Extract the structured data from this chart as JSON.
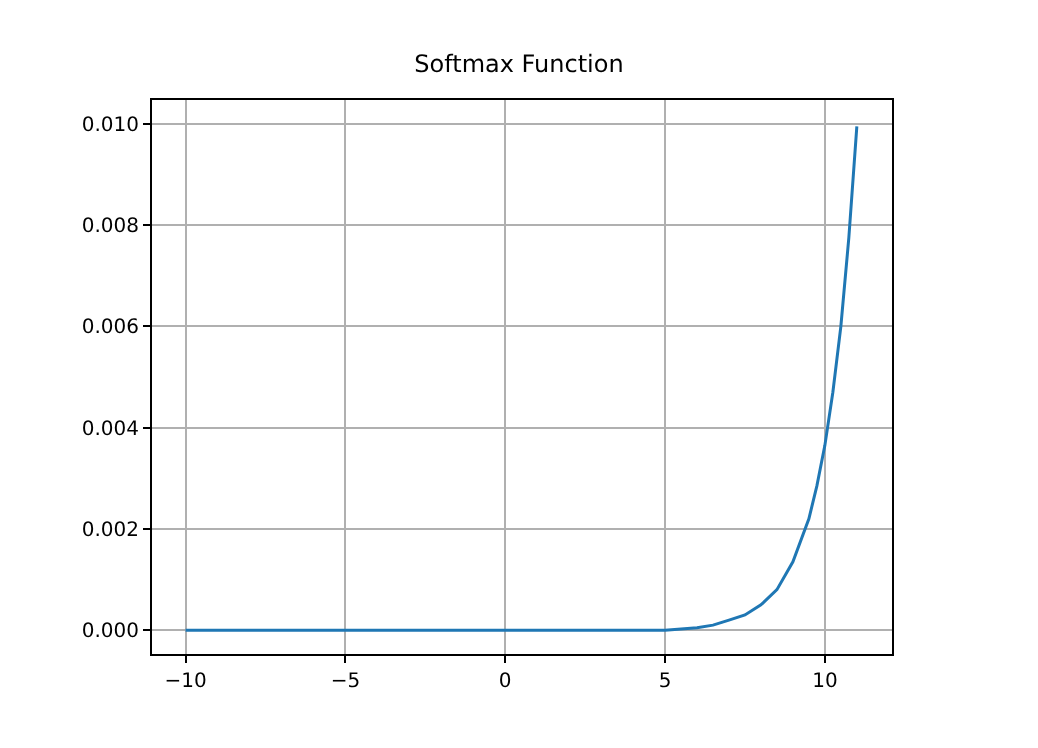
{
  "chart_data": {
    "type": "line",
    "title": "Softmax Function",
    "series": [
      {
        "color": "#1f77b4",
        "x": [
          -10,
          -8,
          -6,
          -4,
          -2,
          0,
          2,
          4,
          5,
          6,
          6.5,
          7,
          7.5,
          8,
          8.5,
          9,
          9.5,
          9.75,
          10,
          10.25,
          10.5,
          10.75,
          11
        ],
        "values": [
          0,
          0,
          0,
          0,
          0,
          0,
          0,
          0,
          0,
          5e-05,
          0.0001,
          0.0002,
          0.0003,
          0.0005,
          0.0008,
          0.00135,
          0.0022,
          0.00285,
          0.00365,
          0.0047,
          0.006,
          0.00775,
          0.00995
        ]
      }
    ],
    "xlim": [
      -11.05,
      12.1
    ],
    "xticks": [
      {
        "value": -10,
        "label": "−10"
      },
      {
        "value": -5,
        "label": "−5"
      },
      0,
      5,
      10
    ],
    "ylim": [
      -0.00047,
      0.01047
    ],
    "yticks": [
      {
        "value": 0,
        "label": "0.000"
      },
      {
        "value": 0.002,
        "label": "0.002"
      },
      {
        "value": 0.004,
        "label": "0.004"
      },
      {
        "value": 0.006,
        "label": "0.006"
      },
      {
        "value": 0.008,
        "label": "0.008"
      },
      {
        "value": 0.01,
        "label": "0.010"
      }
    ],
    "grid": true,
    "line_style": "solid",
    "marker": "none"
  }
}
